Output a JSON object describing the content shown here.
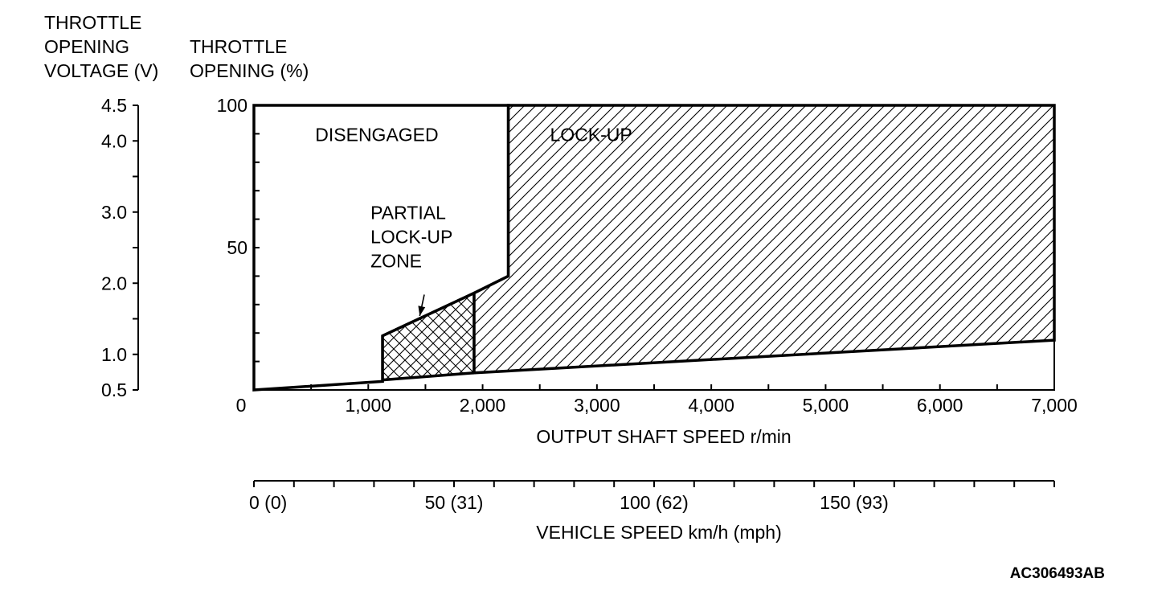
{
  "chart_data": {
    "type": "area",
    "left_axis": {
      "title_lines": [
        "THROTTLE",
        "OPENING",
        "VOLTAGE (V)"
      ],
      "ticks": [
        {
          "value": 4.5,
          "label": "4.5"
        },
        {
          "value": 4.0,
          "label": "4.0"
        },
        {
          "value": 3.5,
          "label": ""
        },
        {
          "value": 3.0,
          "label": "3.0"
        },
        {
          "value": 2.5,
          "label": ""
        },
        {
          "value": 2.0,
          "label": "2.0"
        },
        {
          "value": 1.5,
          "label": ""
        },
        {
          "value": 1.0,
          "label": "1.0"
        },
        {
          "value": 0.5,
          "label": "0.5"
        }
      ],
      "range": [
        0.5,
        4.5
      ]
    },
    "y_axis": {
      "title_lines": [
        "THROTTLE",
        "OPENING (%)"
      ],
      "ticks": [
        {
          "value": 100,
          "label": "100"
        },
        {
          "value": 90,
          "label": ""
        },
        {
          "value": 80,
          "label": ""
        },
        {
          "value": 70,
          "label": ""
        },
        {
          "value": 60,
          "label": ""
        },
        {
          "value": 50,
          "label": "50"
        },
        {
          "value": 40,
          "label": ""
        },
        {
          "value": 30,
          "label": ""
        },
        {
          "value": 20,
          "label": ""
        },
        {
          "value": 10,
          "label": ""
        }
      ],
      "range": [
        0,
        100
      ]
    },
    "x_axis": {
      "title": "OUTPUT SHAFT SPEED r/min",
      "range": [
        0,
        7000
      ],
      "ticks": [
        {
          "value": 0,
          "label": "0"
        },
        {
          "value": 500,
          "label": ""
        },
        {
          "value": 1000,
          "label": "1,000"
        },
        {
          "value": 1500,
          "label": ""
        },
        {
          "value": 2000,
          "label": "2,000"
        },
        {
          "value": 2500,
          "label": ""
        },
        {
          "value": 3000,
          "label": "3,000"
        },
        {
          "value": 3500,
          "label": ""
        },
        {
          "value": 4000,
          "label": "4,000"
        },
        {
          "value": 4500,
          "label": ""
        },
        {
          "value": 5000,
          "label": "5,000"
        },
        {
          "value": 5500,
          "label": ""
        },
        {
          "value": 6000,
          "label": "6,000"
        },
        {
          "value": 6500,
          "label": ""
        },
        {
          "value": 7000,
          "label": "7,000"
        }
      ]
    },
    "vehicle_axis": {
      "title": "VEHICLE SPEED km/h (mph)",
      "range": [
        0,
        200
      ],
      "ticks": [
        {
          "value": 0,
          "label": "0 (0)"
        },
        {
          "value": 10,
          "label": ""
        },
        {
          "value": 20,
          "label": ""
        },
        {
          "value": 30,
          "label": ""
        },
        {
          "value": 40,
          "label": ""
        },
        {
          "value": 50,
          "label": "50 (31)"
        },
        {
          "value": 60,
          "label": ""
        },
        {
          "value": 70,
          "label": ""
        },
        {
          "value": 80,
          "label": ""
        },
        {
          "value": 90,
          "label": ""
        },
        {
          "value": 100,
          "label": "100 (62)"
        },
        {
          "value": 110,
          "label": ""
        },
        {
          "value": 120,
          "label": ""
        },
        {
          "value": 130,
          "label": ""
        },
        {
          "value": 140,
          "label": ""
        },
        {
          "value": 150,
          "label": "150 (93)"
        },
        {
          "value": 160,
          "label": ""
        },
        {
          "value": 170,
          "label": ""
        },
        {
          "value": 180,
          "label": ""
        },
        {
          "value": 190,
          "label": ""
        },
        {
          "value": 200,
          "label": ""
        }
      ]
    },
    "regions": [
      {
        "name": "DISENGAGED",
        "fill": "none",
        "polygon": [
          [
            0,
            0
          ],
          [
            0,
            100
          ],
          [
            2225,
            100
          ],
          [
            2225,
            40
          ],
          [
            1925,
            34
          ],
          [
            1125,
            19
          ],
          [
            1125,
            3
          ],
          [
            0,
            0
          ]
        ]
      },
      {
        "name": "LOCK-UP",
        "fill": "hatch",
        "polygon": [
          [
            2225,
            100
          ],
          [
            7000,
            100
          ],
          [
            7000,
            17.5
          ],
          [
            1925,
            6
          ],
          [
            1925,
            34
          ],
          [
            2225,
            40
          ]
        ]
      },
      {
        "name": "PARTIAL LOCK-UP ZONE",
        "fill": "crosshatch",
        "polygon": [
          [
            1125,
            19
          ],
          [
            1925,
            34
          ],
          [
            1925,
            6
          ],
          [
            1125,
            3.5
          ]
        ]
      }
    ],
    "region_labels": [
      {
        "lines": [
          "DISENGAGED"
        ],
        "x": 1075,
        "y": 87.5,
        "anchor": "middle"
      },
      {
        "lines": [
          "LOCK-UP"
        ],
        "x": 2590,
        "y": 87.5,
        "anchor": "start"
      },
      {
        "lines": [
          "PARTIAL",
          "LOCK-UP",
          "ZONE"
        ],
        "x": 1020,
        "y": 60,
        "anchor": "start"
      }
    ],
    "annotation": {
      "text": "PARTIAL LOCK-UP ZONE",
      "from": [
        1490,
        33.5
      ],
      "to": [
        1450,
        26
      ]
    },
    "figure_code": "AC306493AB"
  }
}
